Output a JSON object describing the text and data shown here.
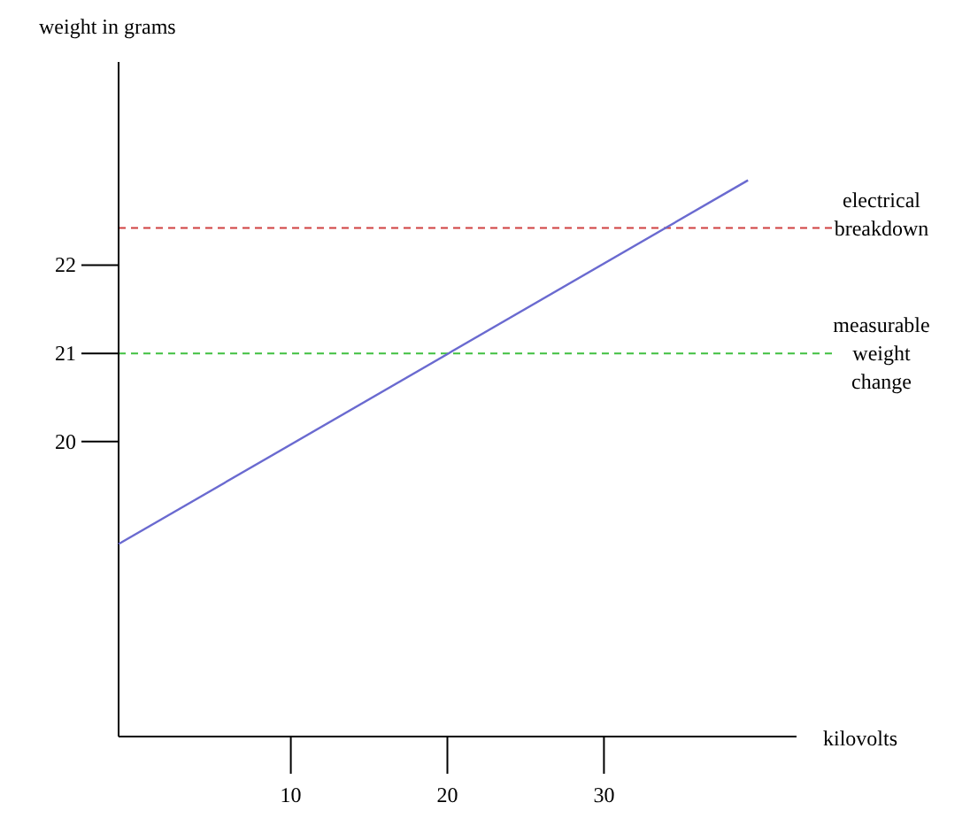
{
  "chart_data": {
    "type": "line",
    "xlabel": "kilovolts",
    "ylabel": "weight in grams",
    "x": [
      -1,
      39.2
    ],
    "series": [
      {
        "color": "#6a6ad0",
        "values": [
          18.84,
          22.96
        ]
      }
    ],
    "xlim": [
      -1,
      42.3
    ],
    "ylim": [
      16.66,
      24.3
    ],
    "xticks": [
      10,
      20,
      30
    ],
    "yticks": [
      20,
      21,
      22
    ],
    "ref_lines": [
      {
        "axis": "y",
        "value": 22.42,
        "label": "electrical breakdown",
        "color": "#d04040",
        "line_style": "dashed"
      },
      {
        "axis": "y",
        "value": 21,
        "label": "measurable weight change",
        "color": "#40c040",
        "line_style": "dashed"
      }
    ],
    "grid": false,
    "marker": "none",
    "line_style": "solid"
  }
}
